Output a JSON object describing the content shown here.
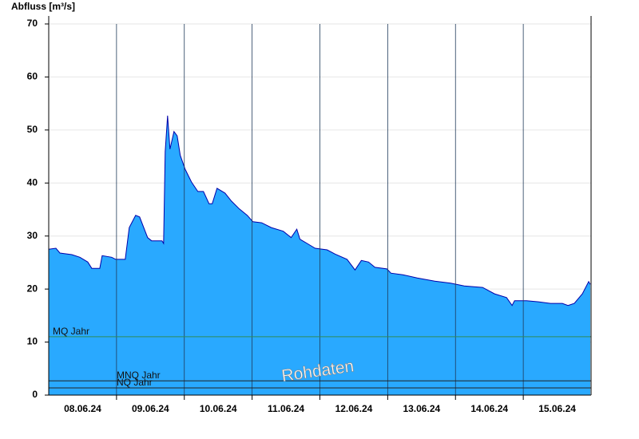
{
  "chart_data": {
    "type": "area",
    "y_label": "Abfluss [m³/s]",
    "watermark": "Rohdaten",
    "x": [
      0,
      0.106,
      0.165,
      0.341,
      0.459,
      0.576,
      0.635,
      0.753,
      0.788,
      0.929,
      0.988,
      1.129,
      1.188,
      1.282,
      1.341,
      1.459,
      1.518,
      1.671,
      1.694,
      1.718,
      1.753,
      1.788,
      1.847,
      1.894,
      1.941,
      2.012,
      2.106,
      2.2,
      2.282,
      2.365,
      2.412,
      2.482,
      2.6,
      2.694,
      2.812,
      2.929,
      3.012,
      3.141,
      3.282,
      3.459,
      3.576,
      3.659,
      3.706,
      3.812,
      3.929,
      4.106,
      4.224,
      4.4,
      4.518,
      4.612,
      4.718,
      4.812,
      4.988,
      5.047,
      5.224,
      5.435,
      5.694,
      5.929,
      6.129,
      6.4,
      6.576,
      6.753,
      6.835,
      6.871,
      7.047,
      7.224,
      7.4,
      7.576,
      7.659,
      7.753,
      7.871,
      7.965,
      7.988
    ],
    "series": [
      {
        "name": "Abfluss",
        "color": "#29a9ff",
        "line_color": "#0000aa",
        "values": [
          27.5,
          27.7,
          26.8,
          26.5,
          26.0,
          25.1,
          23.9,
          23.9,
          26.3,
          26.0,
          25.6,
          25.6,
          31.6,
          33.9,
          33.6,
          29.7,
          29.1,
          29.1,
          28.6,
          45.9,
          52.7,
          46.4,
          49.7,
          48.9,
          45.2,
          42.6,
          40.2,
          38.4,
          38.4,
          36.1,
          36.1,
          39.0,
          38.1,
          36.6,
          35.1,
          33.9,
          32.7,
          32.5,
          31.6,
          30.9,
          29.7,
          31.3,
          29.4,
          28.6,
          27.7,
          27.4,
          26.6,
          25.6,
          23.6,
          25.4,
          25.1,
          24.1,
          23.8,
          23.0,
          22.7,
          22.1,
          21.5,
          21.1,
          20.6,
          20.3,
          19.1,
          18.4,
          16.9,
          17.8,
          17.8,
          17.6,
          17.3,
          17.3,
          16.9,
          17.3,
          19.1,
          21.4,
          20.9
        ]
      }
    ],
    "xlim": [
      0,
      8
    ],
    "xticks": [
      {
        "value": 0.5,
        "label": "08.06.24"
      },
      {
        "value": 1.5,
        "label": "09.06.24"
      },
      {
        "value": 2.5,
        "label": "10.06.24"
      },
      {
        "value": 3.5,
        "label": "11.06.24"
      },
      {
        "value": 4.5,
        "label": "12.06.24"
      },
      {
        "value": 5.5,
        "label": "13.06.24"
      },
      {
        "value": 6.5,
        "label": "14.06.24"
      },
      {
        "value": 7.5,
        "label": "15.06.24"
      }
    ],
    "xgrid": [
      1,
      2,
      3,
      4,
      5,
      6,
      7
    ],
    "ylim": [
      0,
      70
    ],
    "yticks": [
      0,
      10,
      20,
      30,
      40,
      50,
      60,
      70
    ],
    "grid": true,
    "reference_lines": [
      {
        "name": "MQ Jahr",
        "value": 11,
        "color": "#2e8b57"
      },
      {
        "name": "MNQ Jahr",
        "value": 2.7,
        "color": "#222222"
      },
      {
        "name": "NQ Jahr",
        "value": 1.35,
        "color": "#222222"
      }
    ]
  }
}
